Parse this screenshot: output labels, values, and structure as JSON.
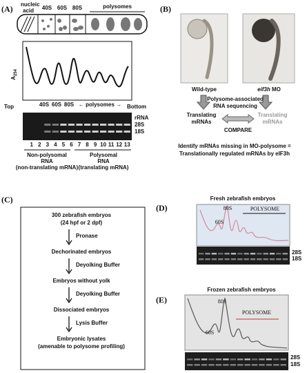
{
  "panel_a": {
    "label": "(A)",
    "tube_labels": {
      "nucleic_acid": [
        "nucleic",
        "acid"
      ],
      "s40": "40S",
      "s60": "60S",
      "s80": "80S",
      "polysomes": "polysomes"
    },
    "y_axis": [
      "A",
      "254"
    ],
    "gradient": {
      "top": "Top",
      "s40": "40S",
      "s60": "60S",
      "s80": "80S",
      "polysomes": "← polysomes →",
      "bottom": "Bottom"
    },
    "gel_labels": [
      "rRNA",
      "28S",
      "18S"
    ],
    "lanes": [
      1,
      2,
      3,
      4,
      5,
      6,
      7,
      8,
      9,
      10,
      11,
      12,
      13
    ],
    "fractions": [
      {
        "lines": [
          "Non-polysomal",
          "RNA",
          "(non-translating mRNA)"
        ]
      },
      {
        "lines": [
          "Polysomal",
          "RNA",
          "(translating mRNA)"
        ]
      }
    ]
  },
  "panel_b": {
    "label": "(B)",
    "wild_type": "Wild-type",
    "morphant": {
      "gene": "eif3h",
      "suffix": "MO"
    },
    "method": [
      "Polysome-associated",
      "RNA sequencing"
    ],
    "left": [
      "Translating",
      "mRNAs"
    ],
    "right": [
      "Translating",
      "mRNAs"
    ],
    "compare": "COMPARE",
    "conclusion": [
      "Identify mRNAs missing in MO-polysome =",
      "Translationally regulated mRNAs by eIF3h"
    ]
  },
  "panel_c": {
    "label": "(C)",
    "steps": [
      [
        "300 zebrafish embryos",
        "(24 hpf or 2 dpf)"
      ],
      [
        "Dechorinated embryos"
      ],
      [
        "Embryos without yolk"
      ],
      [
        "Dissociated embryos"
      ],
      [
        "Embryonic lysates",
        "(amenable to polysome profiling)"
      ]
    ],
    "reagents": [
      "Pronase",
      "Deyolking Buffer",
      "Deyolking Buffer",
      "Lysis Buffer"
    ]
  },
  "panel_d": {
    "label": "(D)",
    "title": "Fresh zebrafish embryos",
    "s80": "80S",
    "s60": "60S",
    "polysome": "POLYSOME",
    "gel_labels": [
      "28S",
      "18S"
    ]
  },
  "panel_e": {
    "label": "(E)",
    "title": "Frozen zebrafish embryos",
    "s80": "80S",
    "s60": "60S",
    "polysome": "POLYSOME",
    "gel_labels": [
      "28S",
      "18S"
    ]
  }
}
